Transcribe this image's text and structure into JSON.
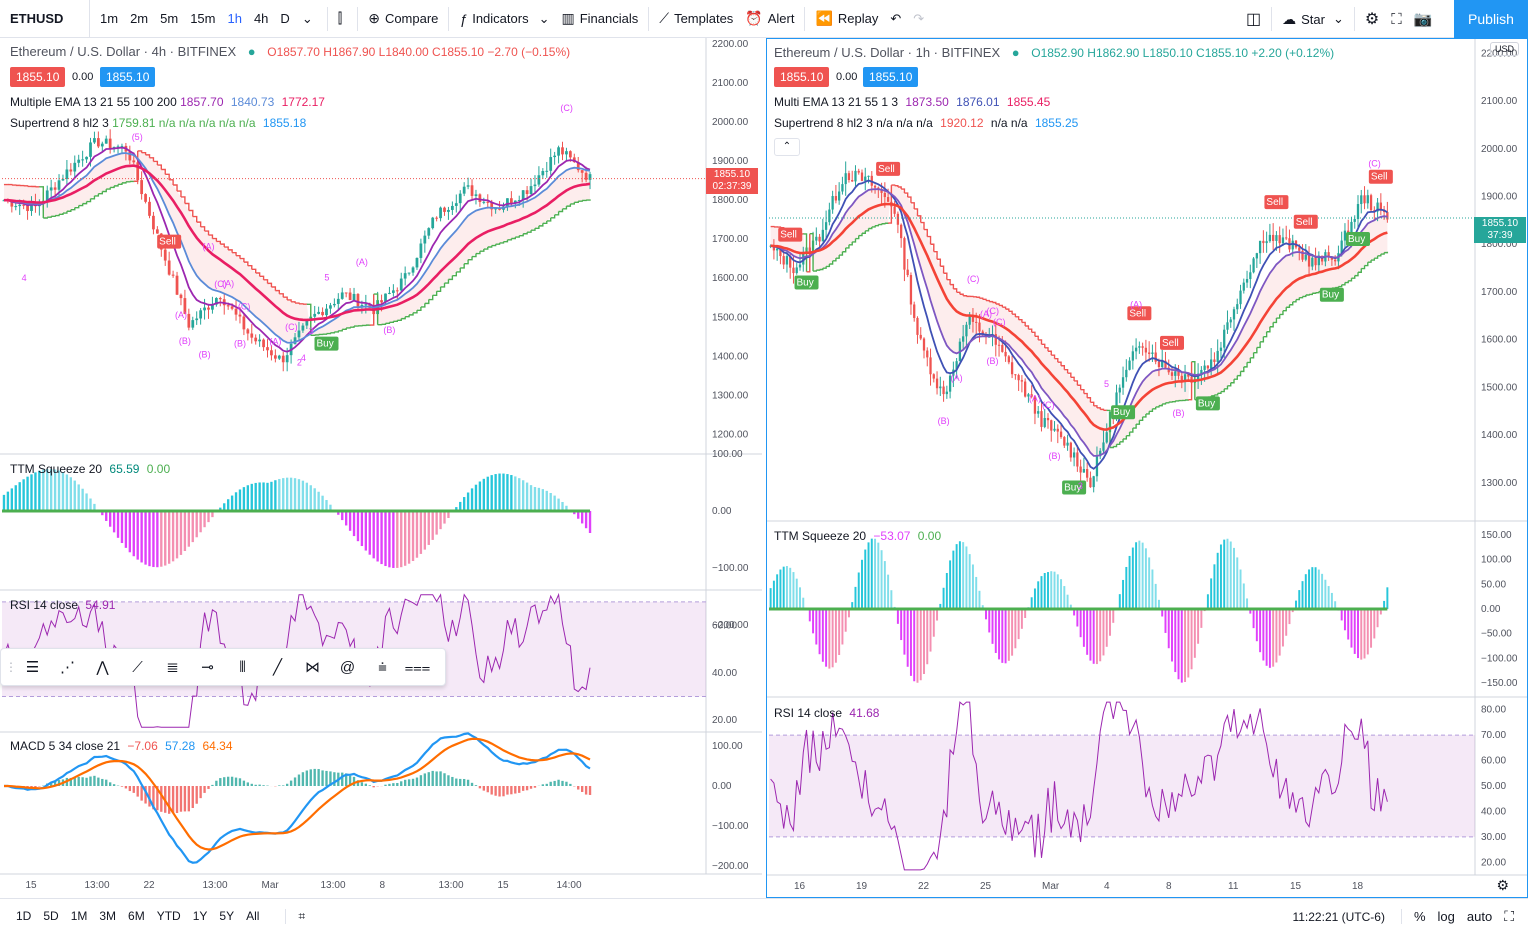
{
  "toolbar": {
    "symbol": "ETHUSD",
    "intervals": [
      "1m",
      "2m",
      "5m",
      "15m",
      "1h",
      "4h",
      "D"
    ],
    "active_interval": "1h",
    "compare": "Compare",
    "indicators": "Indicators",
    "financials": "Financials",
    "templates": "Templates",
    "alert": "Alert",
    "replay": "Replay",
    "star": "Star",
    "publish": "Publish"
  },
  "left_chart": {
    "title": "Ethereum / U.S. Dollar · 4h · BITFINEX",
    "ohlc": "O1857.70 H1867.90 L1840.00 C1855.10 −2.70 (−0.15%)",
    "bid": "1855.10",
    "spread": "0.00",
    "ask": "1855.10",
    "ema_legend": "Multiple EMA 13 21 55 100 200",
    "ema_values": [
      "1857.70",
      "1840.73",
      "1772.17"
    ],
    "supertrend_legend": "Supertrend 8 hl2 3",
    "supertrend_values": "1759.81  n/a  n/a  n/a  n/a  n/a",
    "supertrend_last": "1855.18",
    "price_tag": "1855.10",
    "countdown": "02:37:39",
    "price_axis": [
      "2200.00",
      "2100.00",
      "2000.00",
      "1900.00",
      "1800.00",
      "1700.00",
      "1600.00",
      "1500.00",
      "1400.00",
      "1300.00",
      "1200.00"
    ],
    "ttm_legend": "TTM Squeeze 20",
    "ttm_value": "65.59",
    "ttm_zero": "0.00",
    "ttm_axis": [
      "100.00",
      "0.00",
      "−100.00",
      "−200.00"
    ],
    "rsi_legend": "RSI 14 close",
    "rsi_value": "54.91",
    "rsi_axis": [
      "60.00",
      "40.00",
      "20.00"
    ],
    "macd_legend": "MACD 5 34 close 21",
    "macd_values": [
      "−7.06",
      "57.28",
      "64.34"
    ],
    "macd_axis": [
      "100.00",
      "0.00",
      "−100.00",
      "−200.00"
    ],
    "time_axis": [
      "15",
      "13:00",
      "22",
      "13:00",
      "Mar",
      "13:00",
      "8",
      "13:00",
      "15",
      "14:00"
    ],
    "labels": [
      "Sell",
      "Buy",
      "(5)",
      "(A)",
      "(C)",
      "(B)",
      "(A)",
      "(C)",
      "(B)",
      "(A)",
      "(C)",
      "(A)",
      "5",
      "3",
      "4",
      "2",
      "(B)",
      "(A)",
      "(C)",
      "4",
      "(B)"
    ]
  },
  "right_chart": {
    "title": "Ethereum / U.S. Dollar · 1h · BITFINEX",
    "ohlc": "O1852.90 H1862.90 L1850.10 C1855.10 +2.20 (+0.12%)",
    "bid": "1855.10",
    "spread": "0.00",
    "ask": "1855.10",
    "ema_legend": "Multi EMA 13 21 55 1 3",
    "ema_values": [
      "1873.50",
      "1876.01",
      "1855.45"
    ],
    "supertrend_legend": "Supertrend 8 hl2 3",
    "supertrend_values": "n/a  n/a  n/a",
    "supertrend_mid": "1920.12",
    "supertrend_tail": "n/a  n/a",
    "supertrend_last": "1855.25",
    "currency": "USD",
    "price_tag": "1855.10",
    "countdown": "37:39",
    "price_axis": [
      "2200.00",
      "2100.00",
      "2000.00",
      "1900.00",
      "1800.00",
      "1700.00",
      "1600.00",
      "1500.00",
      "1400.00",
      "1300.00"
    ],
    "ttm_legend": "TTM Squeeze 20",
    "ttm_value": "−53.07",
    "ttm_zero": "0.00",
    "ttm_axis": [
      "150.00",
      "100.00",
      "50.00",
      "0.00",
      "−50.00",
      "−100.00",
      "−150.00"
    ],
    "rsi_legend": "RSI 14 close",
    "rsi_value": "41.68",
    "rsi_axis": [
      "80.00",
      "70.00",
      "60.00",
      "50.00",
      "40.00",
      "30.00",
      "20.00"
    ],
    "time_axis": [
      "16",
      "19",
      "22",
      "25",
      "Mar",
      "4",
      "8",
      "11",
      "15",
      "18"
    ],
    "labels": [
      "Sell",
      "Buy",
      "Sell",
      "Buy",
      "Buy",
      "Sell",
      "Sell",
      "Buy",
      "Buy",
      "Sell",
      "Sell",
      "Buy",
      "Sell",
      "(C)",
      "(A)",
      "(C)",
      "(B)",
      "(A)",
      "(C)",
      "(B)",
      "(A)",
      "(C)",
      "(B)",
      "(A)",
      "5",
      "3",
      "(B)",
      "(C)"
    ]
  },
  "bottombar": {
    "ranges": [
      "1D",
      "5D",
      "1M",
      "3M",
      "6M",
      "YTD",
      "1Y",
      "5Y",
      "All"
    ],
    "clock": "11:22:21 (UTC-6)",
    "percent": "%",
    "log": "log",
    "auto": "auto"
  },
  "colors": {
    "accent": "#2196f3",
    "up": "#26a69a",
    "down": "#ef5350",
    "ema_fast": "#9c27b0",
    "ema_mid": "#5b8bd8",
    "ema_slow": "#e91e63",
    "supertrend_up": "#4caf50",
    "supertrend_down": "#ef5350",
    "rsi": "#9c27b0",
    "macd": "#2196f3",
    "signal": "#ff6d00"
  }
}
